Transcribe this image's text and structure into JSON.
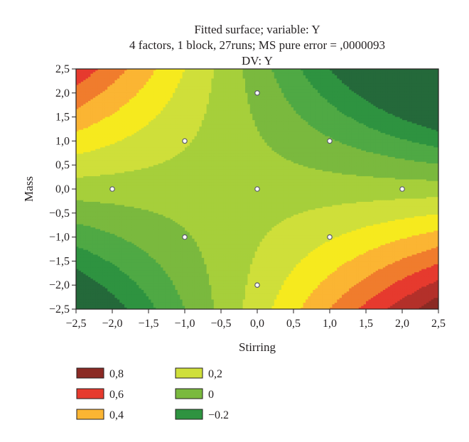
{
  "chart_data": {
    "type": "heatmap",
    "subtype": "contour",
    "title_lines": [
      "Fitted surface; variable: Y",
      "4 factors, 1 block, 27runs; MS pure error = ,0000093",
      "DV: Y"
    ],
    "xlabel": "Stirring",
    "ylabel": "Mass",
    "xlim": [
      -2.5,
      2.5
    ],
    "ylim": [
      -2.5,
      2.5
    ],
    "x_ticks": [
      {
        "value": -2.5,
        "label": "−2,5"
      },
      {
        "value": -2.0,
        "label": "−2,0"
      },
      {
        "value": -1.5,
        "label": "−1,5"
      },
      {
        "value": -1.0,
        "label": "−1,0"
      },
      {
        "value": -0.5,
        "label": "−0,5"
      },
      {
        "value": 0.0,
        "label": "0,0"
      },
      {
        "value": 0.5,
        "label": "0,5"
      },
      {
        "value": 1.0,
        "label": "1,0"
      },
      {
        "value": 1.5,
        "label": "1,5"
      },
      {
        "value": 2.0,
        "label": "2,0"
      },
      {
        "value": 2.5,
        "label": "2,5"
      }
    ],
    "y_ticks": [
      {
        "value": 2.5,
        "label": "2,5"
      },
      {
        "value": 2.0,
        "label": "2,0"
      },
      {
        "value": 1.5,
        "label": "1,5"
      },
      {
        "value": 1.0,
        "label": "1,0"
      },
      {
        "value": 0.5,
        "label": "0,5"
      },
      {
        "value": 0.0,
        "label": "0,0"
      },
      {
        "value": -0.5,
        "label": "−0,5"
      },
      {
        "value": -1.0,
        "label": "−1,0"
      },
      {
        "value": -1.5,
        "label": "−1,5"
      },
      {
        "value": -2.0,
        "label": "−2,0"
      },
      {
        "value": -2.5,
        "label": "−2,5"
      }
    ],
    "surface": {
      "description": "fitted quadratic response surface",
      "intercept": 0.05,
      "b_x": 0.0,
      "b_y": -0.04,
      "b_xx": 0.0,
      "b_yy": 0.0,
      "b_xy": -0.1
    },
    "contour_levels": [
      {
        "min": 0.7,
        "max": null,
        "color": "#8b2a24"
      },
      {
        "min": 0.6,
        "max": 0.7,
        "color": "#b3302a"
      },
      {
        "min": 0.5,
        "max": 0.6,
        "color": "#e63a2e"
      },
      {
        "min": 0.4,
        "max": 0.5,
        "color": "#f07c2d"
      },
      {
        "min": 0.3,
        "max": 0.4,
        "color": "#fbb533"
      },
      {
        "min": 0.2,
        "max": 0.3,
        "color": "#f6ea1e"
      },
      {
        "min": 0.1,
        "max": 0.2,
        "color": "#cfdf3a"
      },
      {
        "min": 0.0,
        "max": 0.1,
        "color": "#a6cf3b"
      },
      {
        "min": -0.1,
        "max": 0.0,
        "color": "#7ab93e"
      },
      {
        "min": -0.2,
        "max": -0.1,
        "color": "#4fa944"
      },
      {
        "min": -0.3,
        "max": -0.2,
        "color": "#2e9340"
      },
      {
        "min": null,
        "max": -0.3,
        "color": "#24693a"
      }
    ],
    "design_points": [
      {
        "x": 0.0,
        "y": 2.0
      },
      {
        "x": -1.0,
        "y": 1.0
      },
      {
        "x": 1.0,
        "y": 1.0
      },
      {
        "x": -2.0,
        "y": 0.0
      },
      {
        "x": 0.0,
        "y": 0.0
      },
      {
        "x": 2.0,
        "y": 0.0
      },
      {
        "x": -1.0,
        "y": -1.0
      },
      {
        "x": 1.0,
        "y": -1.0
      },
      {
        "x": 0.0,
        "y": -2.0
      }
    ],
    "legend": [
      {
        "label": "0,8",
        "color": "#8b2a24"
      },
      {
        "label": "0,6",
        "color": "#e63a2e"
      },
      {
        "label": "0,4",
        "color": "#fbb533"
      },
      {
        "label": "0,2",
        "color": "#cfdf3a"
      },
      {
        "label": "0",
        "color": "#7ab93e"
      },
      {
        "label": "−0.2",
        "color": "#2e9340"
      }
    ],
    "legend_placement": "bottom-left",
    "grid": false
  }
}
